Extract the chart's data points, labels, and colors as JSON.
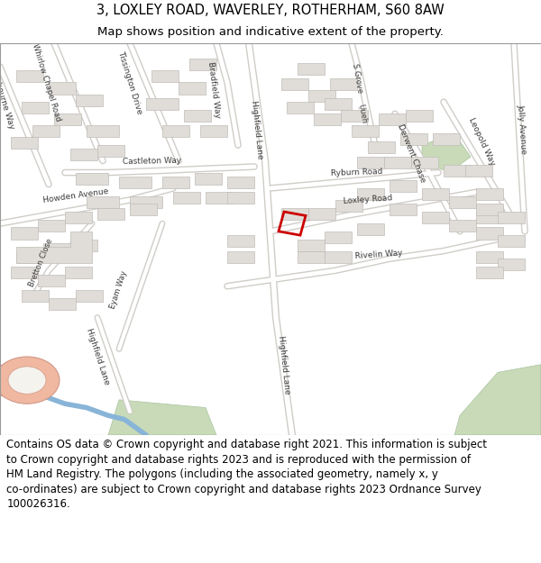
{
  "title_line1": "3, LOXLEY ROAD, WAVERLEY, ROTHERHAM, S60 8AW",
  "title_line2": "Map shows position and indicative extent of the property.",
  "footer_line1": "Contains OS data © Crown copyright and database right 2021. This information is subject",
  "footer_line2": "to Crown copyright and database rights 2023 and is reproduced with the permission of",
  "footer_line3": "HM Land Registry. The polygons (including the associated geometry, namely x, y",
  "footer_line4": "co-ordinates) are subject to Crown copyright and database rights 2023 Ordnance Survey",
  "footer_line5": "100026316.",
  "bg_color": "#f2efe9",
  "road_color": "#ffffff",
  "road_outline_color": "#d0cdc8",
  "building_color": "#e0ddd8",
  "building_outline_color": "#c0bdb8",
  "green_color": "#c8dab8",
  "water_color": "#a8c8e8",
  "river_color": "#88b4d8",
  "salmon_color": "#f0b8a0",
  "red_plot_color": "#cc0000",
  "title_fontsize": 10.5,
  "subtitle_fontsize": 9.5,
  "footer_fontsize": 8.5,
  "map_bg": "#f5f3ee",
  "header_bg": "#ffffff",
  "footer_bg": "#ffffff",
  "border_color": "#999999"
}
